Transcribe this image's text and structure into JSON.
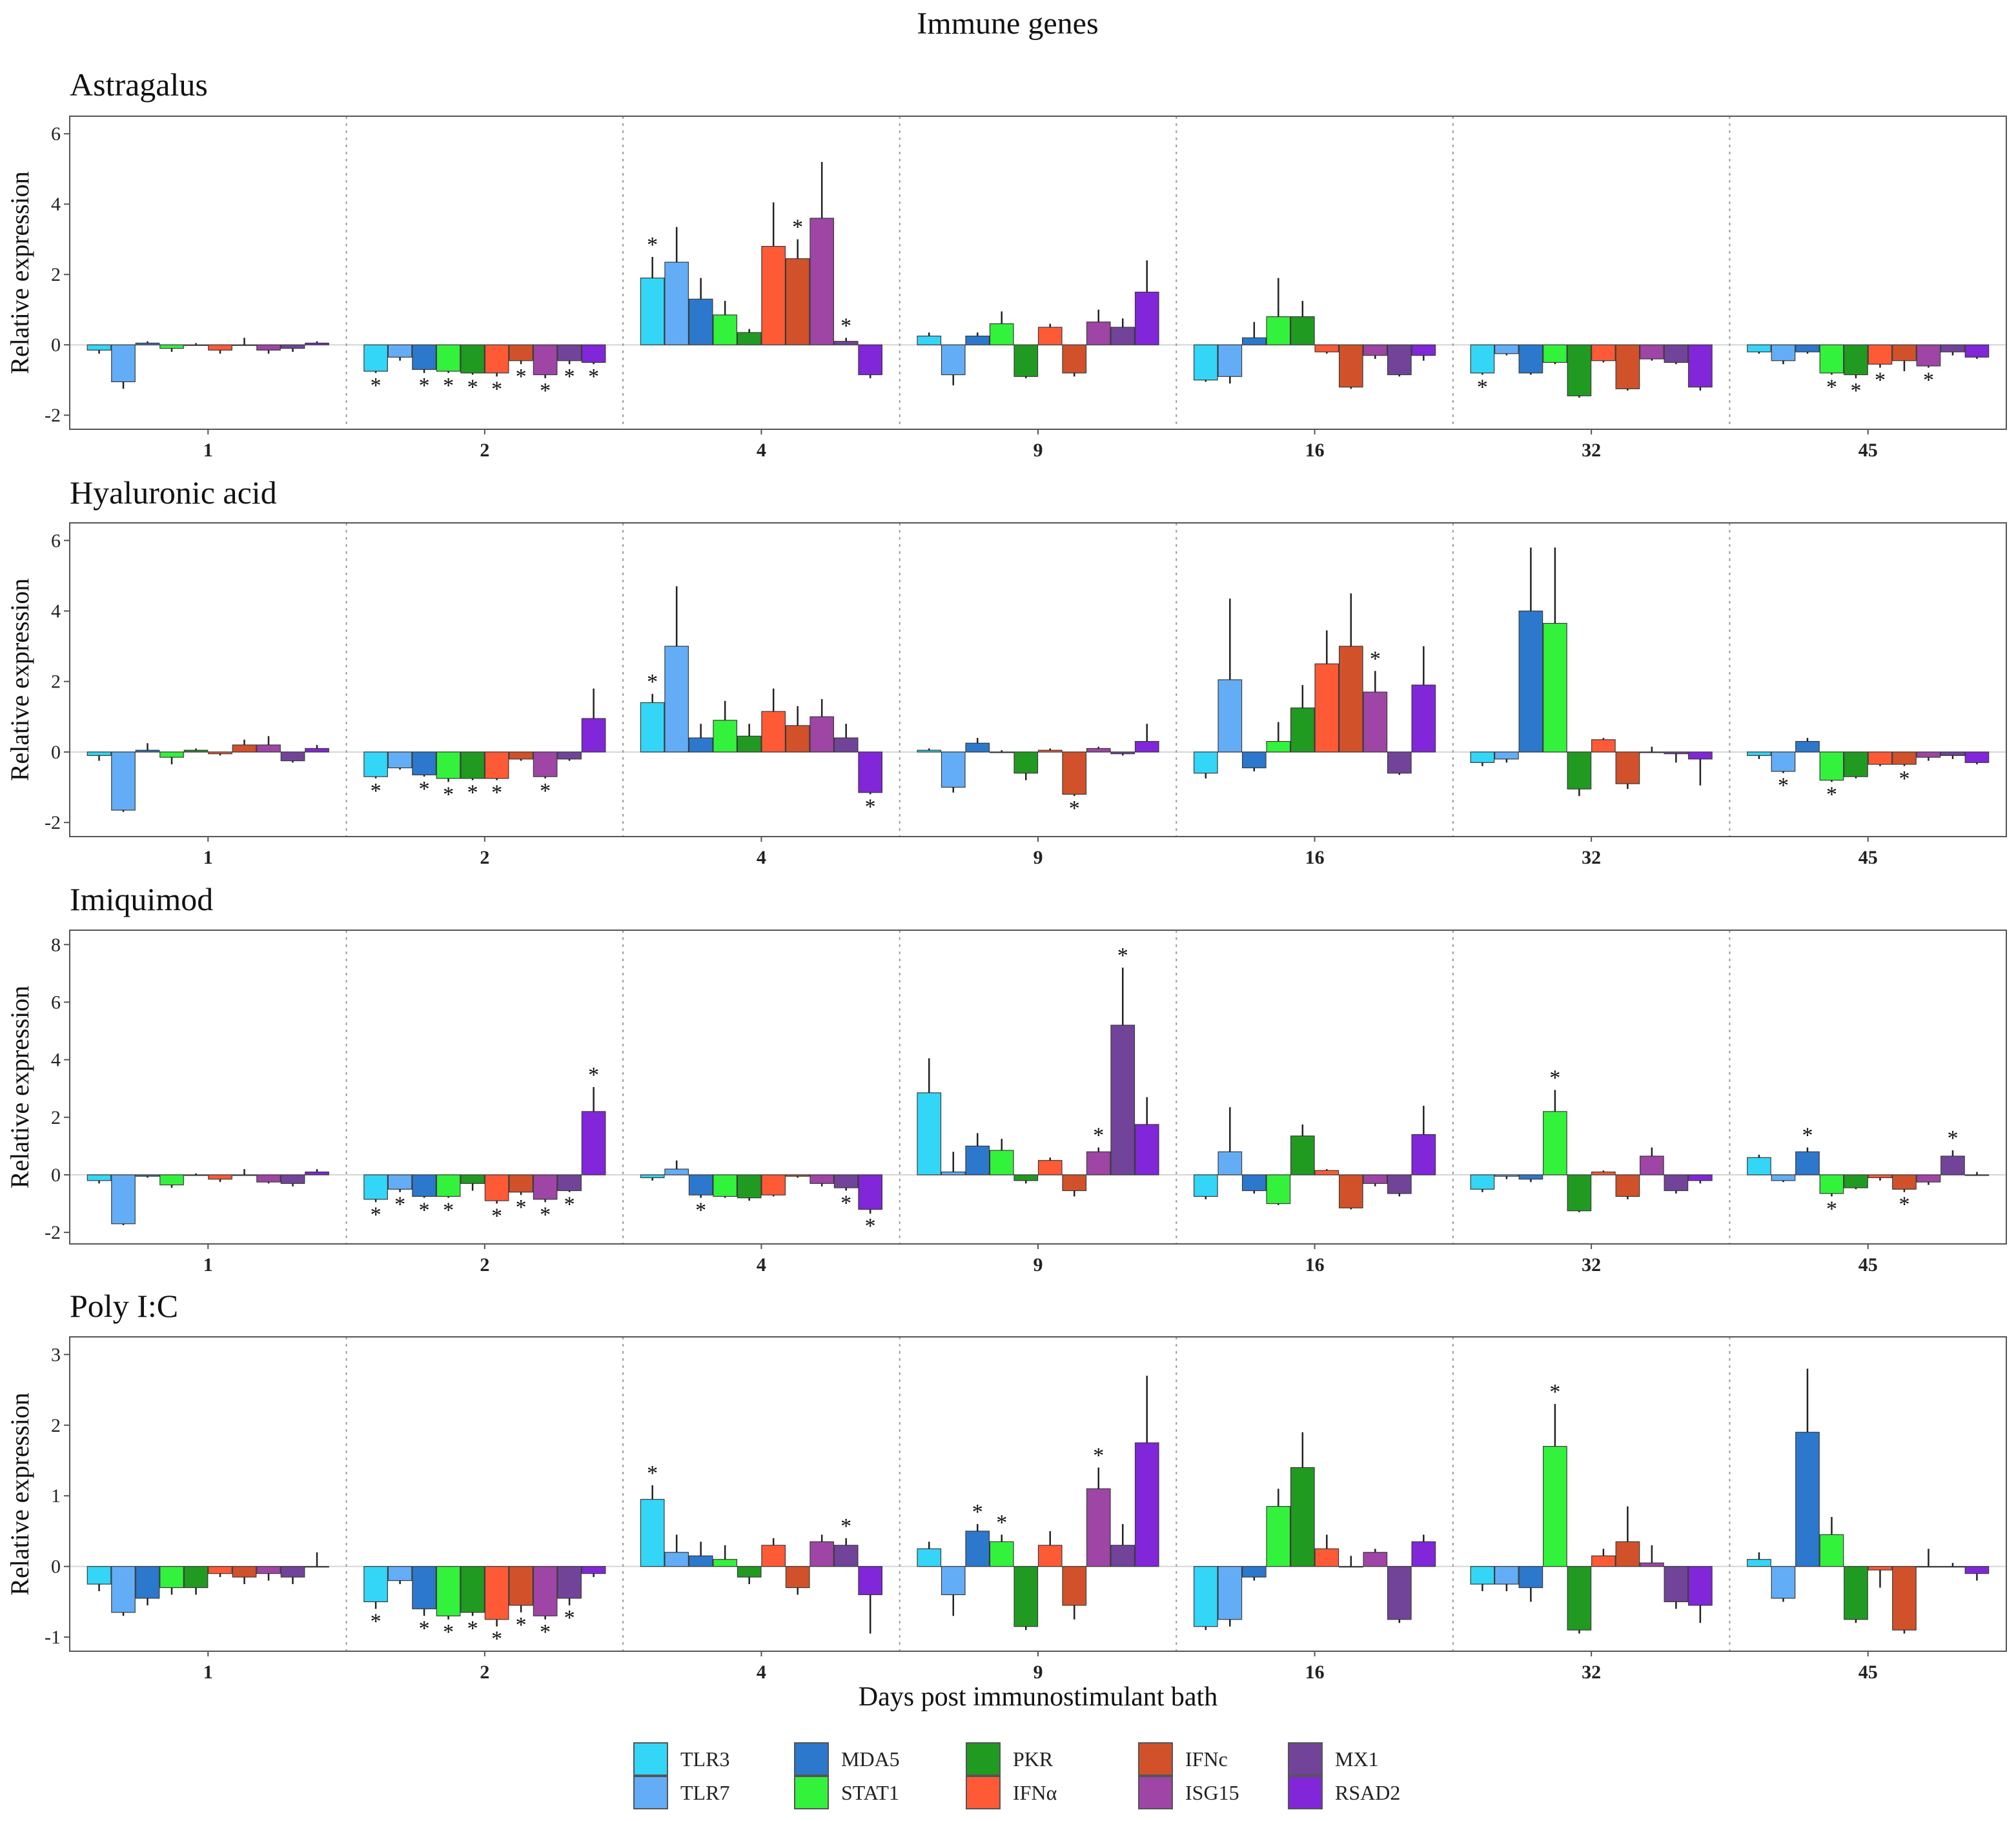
{
  "chart_data": {
    "type": "bar",
    "title": "Immune genes",
    "xlabel": "Days post immunostimulant bath",
    "ylabel": "Relative expression",
    "categories": [
      "1",
      "2",
      "4",
      "9",
      "16",
      "32",
      "45"
    ],
    "genes": [
      "TLR3",
      "TLR7",
      "MDA5",
      "STAT1",
      "PKR",
      "IFNα",
      "IFNc",
      "ISG15",
      "MX1",
      "RSAD2"
    ],
    "colors": [
      "#33d6f6",
      "#63adf6",
      "#2c78cc",
      "#33f23c",
      "#219a21",
      "#ff5a36",
      "#d1522a",
      "#9e45a5",
      "#71449a",
      "#8126d8"
    ],
    "legend": {
      "rows": [
        [
          "TLR3",
          "MDA5",
          "PKR",
          "IFNc",
          "MX1"
        ],
        [
          "TLR7",
          "STAT1",
          "IFNα",
          "ISG15",
          "RSAD2"
        ]
      ],
      "row_color_index": [
        [
          0,
          2,
          4,
          6,
          8
        ],
        [
          1,
          3,
          5,
          7,
          9
        ]
      ]
    },
    "panels": [
      {
        "title": "Astragalus",
        "ylim": [
          -2.4,
          6.5
        ],
        "yticks": [
          "-2",
          "0",
          "2",
          "4",
          "6"
        ],
        "ytick_values": [
          -2,
          0,
          2,
          4,
          6
        ],
        "values": [
          [
            -0.15,
            -1.05,
            0.05,
            -0.1,
            0.0,
            -0.15,
            0.0,
            -0.15,
            -0.1,
            0.05
          ],
          [
            -0.75,
            -0.35,
            -0.7,
            -0.75,
            -0.8,
            -0.8,
            -0.45,
            -0.85,
            -0.45,
            -0.5
          ],
          [
            1.9,
            2.35,
            1.3,
            0.85,
            0.35,
            2.8,
            2.45,
            3.6,
            0.1,
            -0.85
          ],
          [
            0.25,
            -0.85,
            0.25,
            0.6,
            -0.9,
            0.5,
            -0.8,
            0.65,
            0.5,
            1.5
          ],
          [
            -1.0,
            -0.9,
            0.2,
            0.8,
            0.8,
            -0.2,
            -1.2,
            -0.3,
            -0.85,
            -0.3
          ],
          [
            -0.8,
            -0.25,
            -0.8,
            -0.5,
            -1.45,
            -0.45,
            -1.25,
            -0.4,
            -0.5,
            -1.2
          ],
          [
            -0.2,
            -0.45,
            -0.2,
            -0.8,
            -0.85,
            -0.55,
            -0.45,
            -0.6,
            -0.2,
            -0.35
          ]
        ],
        "errors": [
          [
            0.1,
            0.2,
            0.05,
            0.1,
            0.05,
            0.1,
            0.2,
            0.1,
            0.1,
            0.05
          ],
          [
            0.05,
            0.1,
            0.1,
            0.05,
            0.05,
            0.1,
            0.1,
            0.1,
            0.1,
            0.05
          ],
          [
            0.6,
            1.0,
            0.6,
            0.4,
            0.1,
            1.25,
            0.55,
            1.6,
            0.1,
            0.1
          ],
          [
            0.1,
            0.3,
            0.1,
            0.35,
            0.05,
            0.1,
            0.1,
            0.35,
            0.25,
            0.9
          ],
          [
            0.05,
            0.2,
            0.45,
            1.1,
            0.45,
            0.05,
            0.05,
            0.1,
            0.05,
            0.15
          ],
          [
            0.05,
            0.05,
            0.05,
            0.05,
            0.05,
            0.05,
            0.05,
            0.05,
            0.05,
            0.1
          ],
          [
            0.05,
            0.1,
            0.05,
            0.05,
            0.1,
            0.1,
            0.3,
            0.05,
            0.1,
            0.05
          ]
        ],
        "stars": [
          [],
          [
            0,
            2,
            3,
            4,
            5,
            6,
            7,
            8,
            9
          ],
          [
            0,
            6,
            8
          ],
          [],
          [],
          [
            0
          ],
          [
            3,
            4,
            5,
            7
          ]
        ]
      },
      {
        "title": "Hyaluronic acid",
        "ylim": [
          -2.4,
          6.5
        ],
        "yticks": [
          "-2",
          "0",
          "2",
          "4",
          "6"
        ],
        "ytick_values": [
          -2,
          0,
          2,
          4,
          6
        ],
        "values": [
          [
            -0.1,
            -1.65,
            0.05,
            -0.15,
            0.05,
            -0.05,
            0.2,
            0.2,
            -0.25,
            0.1
          ],
          [
            -0.7,
            -0.45,
            -0.65,
            -0.75,
            -0.75,
            -0.75,
            -0.2,
            -0.7,
            -0.2,
            0.95
          ],
          [
            1.4,
            3.0,
            0.4,
            0.9,
            0.45,
            1.15,
            0.75,
            1.0,
            0.4,
            -1.15
          ],
          [
            0.05,
            -1.0,
            0.25,
            0.0,
            -0.6,
            0.05,
            -1.2,
            0.1,
            -0.05,
            0.3
          ],
          [
            -0.6,
            2.05,
            -0.45,
            0.3,
            1.25,
            2.5,
            3.0,
            1.7,
            -0.6,
            1.9
          ],
          [
            -0.3,
            -0.2,
            4.0,
            3.65,
            -1.05,
            0.35,
            -0.9,
            0.0,
            -0.05,
            -0.2
          ],
          [
            -0.1,
            -0.55,
            0.3,
            -0.8,
            -0.7,
            -0.35,
            -0.35,
            -0.15,
            -0.1,
            -0.3
          ]
        ],
        "errors": [
          [
            0.15,
            0.05,
            0.2,
            0.2,
            0.05,
            0.05,
            0.15,
            0.25,
            0.05,
            0.1
          ],
          [
            0.05,
            0.05,
            0.05,
            0.1,
            0.05,
            0.05,
            0.05,
            0.05,
            0.05,
            0.85
          ],
          [
            0.25,
            1.7,
            0.4,
            0.55,
            0.35,
            0.65,
            0.55,
            0.5,
            0.4,
            0.05
          ],
          [
            0.05,
            0.15,
            0.15,
            0.05,
            0.2,
            0.05,
            0.05,
            0.05,
            0.05,
            0.5
          ],
          [
            0.15,
            2.3,
            0.1,
            0.55,
            0.65,
            0.95,
            1.5,
            0.6,
            0.05,
            1.1
          ],
          [
            0.1,
            0.1,
            1.8,
            2.15,
            0.2,
            0.05,
            0.15,
            0.15,
            0.25,
            0.75
          ],
          [
            0.1,
            0.05,
            0.1,
            0.05,
            0.05,
            0.05,
            0.05,
            0.1,
            0.1,
            0.05
          ]
        ],
        "stars": [
          [],
          [
            0,
            2,
            3,
            4,
            5,
            7
          ],
          [
            0,
            9
          ],
          [
            6
          ],
          [
            7
          ],
          [],
          [
            1,
            3,
            6
          ]
        ]
      },
      {
        "title": "Imiquimod",
        "ylim": [
          -2.4,
          8.5
        ],
        "yticks": [
          "-2",
          "0",
          "2",
          "4",
          "6",
          "8"
        ],
        "ytick_values": [
          -2,
          0,
          2,
          4,
          6,
          8
        ],
        "values": [
          [
            -0.2,
            -1.7,
            -0.05,
            -0.35,
            0.0,
            -0.15,
            0.0,
            -0.25,
            -0.3,
            0.1
          ],
          [
            -0.85,
            -0.5,
            -0.75,
            -0.75,
            -0.3,
            -0.9,
            -0.6,
            -0.85,
            -0.55,
            2.2
          ],
          [
            -0.1,
            0.2,
            -0.7,
            -0.75,
            -0.8,
            -0.7,
            -0.05,
            -0.3,
            -0.45,
            -1.2
          ],
          [
            2.85,
            0.1,
            1.0,
            0.85,
            -0.2,
            0.5,
            -0.55,
            0.8,
            5.2,
            1.75
          ],
          [
            -0.75,
            0.8,
            -0.55,
            -1.0,
            1.35,
            0.15,
            -1.15,
            -0.3,
            -0.65,
            1.4
          ],
          [
            -0.5,
            -0.05,
            -0.15,
            2.2,
            -1.25,
            0.1,
            -0.75,
            0.65,
            -0.55,
            -0.2
          ],
          [
            0.6,
            -0.2,
            0.8,
            -0.65,
            -0.45,
            -0.1,
            -0.5,
            -0.25,
            0.65,
            0.0
          ]
        ],
        "errors": [
          [
            0.1,
            0.05,
            0.05,
            0.1,
            0.05,
            0.1,
            0.2,
            0.05,
            0.1,
            0.1
          ],
          [
            0.1,
            0.1,
            0.05,
            0.05,
            0.25,
            0.1,
            0.1,
            0.1,
            0.05,
            0.85
          ],
          [
            0.1,
            0.3,
            0.1,
            0.05,
            0.1,
            0.05,
            0.05,
            0.1,
            0.1,
            0.15
          ],
          [
            1.2,
            0.7,
            0.45,
            0.4,
            0.1,
            0.1,
            0.2,
            0.15,
            2.0,
            0.95
          ],
          [
            0.1,
            1.55,
            0.1,
            0.05,
            0.4,
            0.05,
            0.05,
            0.1,
            0.1,
            1.0
          ],
          [
            0.1,
            0.1,
            0.1,
            0.75,
            0.05,
            0.05,
            0.1,
            0.3,
            0.1,
            0.1
          ],
          [
            0.1,
            0.05,
            0.15,
            0.1,
            0.05,
            0.1,
            0.1,
            0.1,
            0.2,
            0.1
          ]
        ],
        "stars": [
          [],
          [
            0,
            1,
            2,
            3,
            5,
            6,
            7,
            8,
            9
          ],
          [
            2,
            8,
            9
          ],
          [
            7,
            8
          ],
          [],
          [
            3
          ],
          [
            2,
            3,
            6,
            8
          ]
        ]
      },
      {
        "title": "Poly I:C",
        "ylim": [
          -1.2,
          3.25
        ],
        "yticks": [
          "-1",
          "0",
          "1",
          "2",
          "3"
        ],
        "ytick_values": [
          -1,
          0,
          1,
          2,
          3
        ],
        "values": [
          [
            -0.25,
            -0.65,
            -0.45,
            -0.3,
            -0.3,
            -0.1,
            -0.15,
            -0.1,
            -0.15,
            0.0
          ],
          [
            -0.5,
            -0.2,
            -0.6,
            -0.7,
            -0.65,
            -0.75,
            -0.55,
            -0.7,
            -0.45,
            -0.1
          ],
          [
            0.95,
            0.2,
            0.15,
            0.1,
            -0.15,
            0.3,
            -0.3,
            0.35,
            0.3,
            -0.4
          ],
          [
            0.25,
            -0.4,
            0.5,
            0.35,
            -0.85,
            0.3,
            -0.55,
            1.1,
            0.3,
            1.75
          ],
          [
            -0.85,
            -0.75,
            -0.15,
            0.85,
            1.4,
            0.25,
            0.0,
            0.2,
            -0.75,
            0.35
          ],
          [
            -0.25,
            -0.25,
            -0.3,
            1.7,
            -0.9,
            0.15,
            0.35,
            0.05,
            -0.5,
            -0.55
          ],
          [
            0.1,
            -0.45,
            1.9,
            0.45,
            -0.75,
            -0.05,
            -0.9,
            0.0,
            0.0,
            -0.1
          ]
        ],
        "errors": [
          [
            0.1,
            0.05,
            0.1,
            0.1,
            0.1,
            0.05,
            0.1,
            0.1,
            0.1,
            0.2
          ],
          [
            0.1,
            0.05,
            0.1,
            0.05,
            0.05,
            0.1,
            0.1,
            0.05,
            0.1,
            0.05
          ],
          [
            0.2,
            0.25,
            0.2,
            0.2,
            0.1,
            0.1,
            0.1,
            0.1,
            0.1,
            0.55
          ],
          [
            0.1,
            0.3,
            0.1,
            0.1,
            0.05,
            0.2,
            0.2,
            0.3,
            0.3,
            0.95
          ],
          [
            0.05,
            0.1,
            0.05,
            0.25,
            0.5,
            0.2,
            0.15,
            0.05,
            0.05,
            0.1
          ],
          [
            0.1,
            0.1,
            0.2,
            0.6,
            0.05,
            0.1,
            0.5,
            0.25,
            0.1,
            0.25
          ],
          [
            0.1,
            0.05,
            0.9,
            0.25,
            0.05,
            0.25,
            0.05,
            0.25,
            0.05,
            0.1
          ]
        ],
        "stars": [
          [],
          [
            0,
            2,
            3,
            4,
            5,
            6,
            7,
            8
          ],
          [
            0,
            8
          ],
          [
            2,
            3,
            7
          ],
          [],
          [
            3
          ],
          []
        ]
      }
    ],
    "significance_marker": "*"
  }
}
